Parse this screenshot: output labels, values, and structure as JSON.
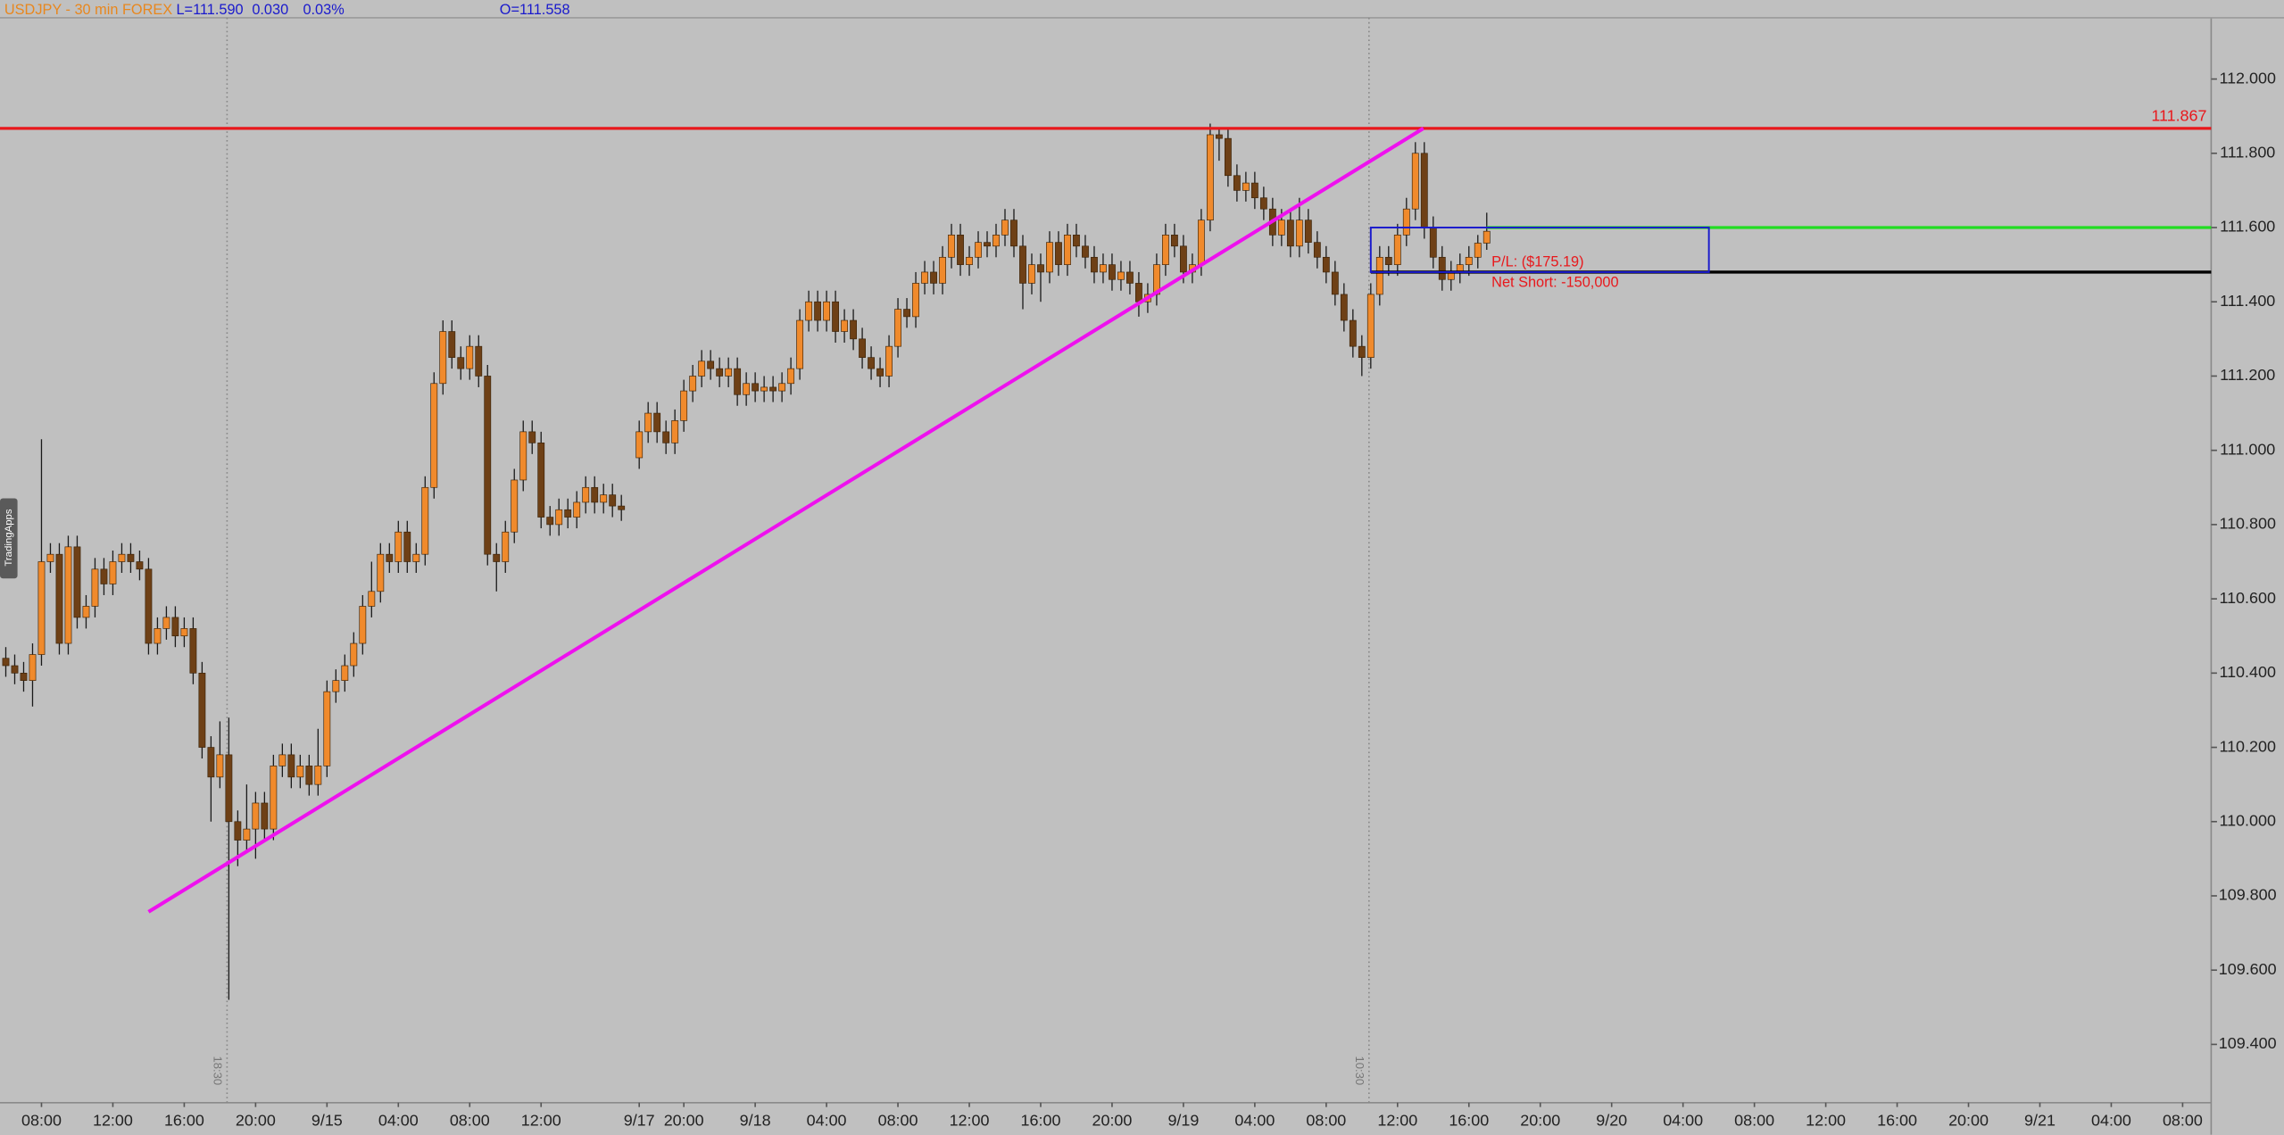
{
  "chart_data": {
    "type": "candlestick",
    "title": "USDJPY - 30 min  FOREX",
    "quote": [
      "L=111.590",
      "0.030",
      "0.03%",
      "O=111.558"
    ],
    "up_color": "#f08a2c",
    "down_color": "#6e4016",
    "wick_color": "#1a1a1a",
    "xlim": [
      -0.65,
      247.2
    ],
    "ylim": [
      109.243,
      112.165
    ],
    "yticks": [
      {
        "value": 109.4,
        "label": "109.400"
      },
      {
        "value": 109.6,
        "label": "109.600"
      },
      {
        "value": 109.8,
        "label": "109.800"
      },
      {
        "value": 110.0,
        "label": "110.000"
      },
      {
        "value": 110.2,
        "label": "110.200"
      },
      {
        "value": 110.4,
        "label": "110.400"
      },
      {
        "value": 110.6,
        "label": "110.600"
      },
      {
        "value": 110.8,
        "label": "110.800"
      },
      {
        "value": 111.0,
        "label": "111.000"
      },
      {
        "value": 111.2,
        "label": "111.200"
      },
      {
        "value": 111.4,
        "label": "111.400"
      },
      {
        "value": 111.6,
        "label": "111.600"
      },
      {
        "value": 111.8,
        "label": "111.800"
      },
      {
        "value": 112.0,
        "label": "112.000"
      }
    ],
    "xticks": [
      {
        "value": 4,
        "label": "08:00"
      },
      {
        "value": 12,
        "label": "12:00"
      },
      {
        "value": 20,
        "label": "16:00"
      },
      {
        "value": 28,
        "label": "20:00"
      },
      {
        "value": 36,
        "label": "9/15"
      },
      {
        "value": 44,
        "label": "04:00"
      },
      {
        "value": 52,
        "label": "08:00"
      },
      {
        "value": 60,
        "label": "12:00"
      },
      {
        "value": 71,
        "label": "9/17"
      },
      {
        "value": 76,
        "label": "20:00"
      },
      {
        "value": 84,
        "label": "9/18"
      },
      {
        "value": 92,
        "label": "04:00"
      },
      {
        "value": 100,
        "label": "08:00"
      },
      {
        "value": 108,
        "label": "12:00"
      },
      {
        "value": 116,
        "label": "16:00"
      },
      {
        "value": 124,
        "label": "20:00"
      },
      {
        "value": 132,
        "label": "9/19"
      },
      {
        "value": 140,
        "label": "04:00"
      },
      {
        "value": 148,
        "label": "08:00"
      },
      {
        "value": 156,
        "label": "12:00"
      },
      {
        "value": 164,
        "label": "16:00"
      },
      {
        "value": 172,
        "label": "20:00"
      },
      {
        "value": 180,
        "label": "9/20"
      },
      {
        "value": 188,
        "label": "04:00"
      },
      {
        "value": 196,
        "label": "08:00"
      },
      {
        "value": 204,
        "label": "12:00"
      },
      {
        "value": 212,
        "label": "16:00"
      },
      {
        "value": 220,
        "label": "20:00"
      },
      {
        "value": 228,
        "label": "9/21"
      },
      {
        "value": 236,
        "label": "04:00"
      },
      {
        "value": 244,
        "label": "08:00"
      }
    ],
    "ohlc": [
      [
        110.44,
        110.47,
        110.39,
        110.42
      ],
      [
        110.42,
        110.45,
        110.37,
        110.4
      ],
      [
        110.4,
        110.43,
        110.35,
        110.38
      ],
      [
        110.38,
        110.48,
        110.31,
        110.45
      ],
      [
        110.45,
        111.03,
        110.42,
        110.7
      ],
      [
        110.7,
        110.75,
        110.67,
        110.72
      ],
      [
        110.72,
        110.75,
        110.45,
        110.48
      ],
      [
        110.48,
        110.77,
        110.45,
        110.74
      ],
      [
        110.74,
        110.77,
        110.52,
        110.55
      ],
      [
        110.55,
        110.61,
        110.52,
        110.58
      ],
      [
        110.58,
        110.71,
        110.55,
        110.68
      ],
      [
        110.68,
        110.71,
        110.61,
        110.64
      ],
      [
        110.64,
        110.73,
        110.61,
        110.7
      ],
      [
        110.7,
        110.75,
        110.67,
        110.72
      ],
      [
        110.72,
        110.75,
        110.67,
        110.7
      ],
      [
        110.7,
        110.73,
        110.65,
        110.68
      ],
      [
        110.68,
        110.71,
        110.45,
        110.48
      ],
      [
        110.48,
        110.55,
        110.45,
        110.52
      ],
      [
        110.52,
        110.58,
        110.49,
        110.55
      ],
      [
        110.55,
        110.58,
        110.47,
        110.5
      ],
      [
        110.5,
        110.55,
        110.47,
        110.52
      ],
      [
        110.52,
        110.55,
        110.37,
        110.4
      ],
      [
        110.4,
        110.43,
        110.17,
        110.2
      ],
      [
        110.2,
        110.23,
        110.0,
        110.12
      ],
      [
        110.12,
        110.27,
        110.09,
        110.18
      ],
      [
        110.18,
        110.28,
        109.52,
        110.0
      ],
      [
        110.0,
        110.03,
        109.88,
        109.95
      ],
      [
        109.95,
        110.1,
        109.92,
        109.98
      ],
      [
        109.98,
        110.08,
        109.9,
        110.05
      ],
      [
        110.05,
        110.08,
        109.95,
        109.98
      ],
      [
        109.98,
        110.18,
        109.95,
        110.15
      ],
      [
        110.15,
        110.21,
        110.12,
        110.18
      ],
      [
        110.18,
        110.21,
        110.09,
        110.12
      ],
      [
        110.12,
        110.18,
        110.09,
        110.15
      ],
      [
        110.15,
        110.18,
        110.07,
        110.1
      ],
      [
        110.1,
        110.25,
        110.07,
        110.15
      ],
      [
        110.15,
        110.38,
        110.12,
        110.35
      ],
      [
        110.35,
        110.41,
        110.32,
        110.38
      ],
      [
        110.38,
        110.45,
        110.35,
        110.42
      ],
      [
        110.42,
        110.51,
        110.39,
        110.48
      ],
      [
        110.48,
        110.61,
        110.45,
        110.58
      ],
      [
        110.58,
        110.7,
        110.55,
        110.62
      ],
      [
        110.62,
        110.75,
        110.59,
        110.72
      ],
      [
        110.72,
        110.75,
        110.67,
        110.7
      ],
      [
        110.7,
        110.81,
        110.67,
        110.78
      ],
      [
        110.78,
        110.81,
        110.67,
        110.7
      ],
      [
        110.7,
        110.75,
        110.67,
        110.72
      ],
      [
        110.72,
        110.93,
        110.69,
        110.9
      ],
      [
        110.9,
        111.21,
        110.87,
        111.18
      ],
      [
        111.18,
        111.35,
        111.15,
        111.32
      ],
      [
        111.32,
        111.35,
        111.22,
        111.25
      ],
      [
        111.25,
        111.28,
        111.19,
        111.22
      ],
      [
        111.22,
        111.31,
        111.19,
        111.28
      ],
      [
        111.28,
        111.31,
        111.17,
        111.2
      ],
      [
        111.2,
        111.23,
        110.69,
        110.72
      ],
      [
        110.72,
        110.75,
        110.62,
        110.7
      ],
      [
        110.7,
        110.81,
        110.67,
        110.78
      ],
      [
        110.78,
        110.95,
        110.75,
        110.92
      ],
      [
        110.92,
        111.08,
        110.89,
        111.05
      ],
      [
        111.05,
        111.08,
        110.99,
        111.02
      ],
      [
        111.02,
        111.05,
        110.79,
        110.82
      ],
      [
        110.82,
        110.85,
        110.77,
        110.8
      ],
      [
        110.8,
        110.87,
        110.77,
        110.84
      ],
      [
        110.84,
        110.87,
        110.79,
        110.82
      ],
      [
        110.82,
        110.89,
        110.79,
        110.86
      ],
      [
        110.86,
        110.93,
        110.83,
        110.9
      ],
      [
        110.9,
        110.93,
        110.83,
        110.86
      ],
      [
        110.86,
        110.91,
        110.83,
        110.88
      ],
      [
        110.88,
        110.91,
        110.82,
        110.85
      ],
      [
        110.85,
        110.88,
        110.81,
        110.84
      ],
      null,
      [
        110.98,
        111.08,
        110.95,
        111.05
      ],
      [
        111.05,
        111.13,
        111.02,
        111.1
      ],
      [
        111.1,
        111.13,
        111.02,
        111.05
      ],
      [
        111.05,
        111.08,
        110.99,
        111.02
      ],
      [
        111.02,
        111.11,
        110.99,
        111.08
      ],
      [
        111.08,
        111.19,
        111.05,
        111.16
      ],
      [
        111.16,
        111.23,
        111.13,
        111.2
      ],
      [
        111.2,
        111.27,
        111.17,
        111.24
      ],
      [
        111.24,
        111.27,
        111.19,
        111.22
      ],
      [
        111.22,
        111.25,
        111.17,
        111.2
      ],
      [
        111.2,
        111.25,
        111.17,
        111.22
      ],
      [
        111.22,
        111.25,
        111.12,
        111.15
      ],
      [
        111.15,
        111.21,
        111.12,
        111.18
      ],
      [
        111.18,
        111.21,
        111.13,
        111.16
      ],
      [
        111.16,
        111.2,
        111.13,
        111.17
      ],
      [
        111.17,
        111.2,
        111.13,
        111.16
      ],
      [
        111.16,
        111.21,
        111.13,
        111.18
      ],
      [
        111.18,
        111.25,
        111.15,
        111.22
      ],
      [
        111.22,
        111.38,
        111.19,
        111.35
      ],
      [
        111.35,
        111.43,
        111.32,
        111.4
      ],
      [
        111.4,
        111.43,
        111.32,
        111.35
      ],
      [
        111.35,
        111.43,
        111.32,
        111.4
      ],
      [
        111.4,
        111.43,
        111.29,
        111.32
      ],
      [
        111.32,
        111.38,
        111.29,
        111.35
      ],
      [
        111.35,
        111.38,
        111.27,
        111.3
      ],
      [
        111.3,
        111.33,
        111.22,
        111.25
      ],
      [
        111.25,
        111.28,
        111.19,
        111.22
      ],
      [
        111.22,
        111.25,
        111.17,
        111.2
      ],
      [
        111.2,
        111.31,
        111.17,
        111.28
      ],
      [
        111.28,
        111.41,
        111.25,
        111.38
      ],
      [
        111.38,
        111.41,
        111.33,
        111.36
      ],
      [
        111.36,
        111.48,
        111.33,
        111.45
      ],
      [
        111.45,
        111.51,
        111.42,
        111.48
      ],
      [
        111.48,
        111.51,
        111.42,
        111.45
      ],
      [
        111.45,
        111.55,
        111.42,
        111.52
      ],
      [
        111.52,
        111.61,
        111.49,
        111.58
      ],
      [
        111.58,
        111.61,
        111.47,
        111.5
      ],
      [
        111.5,
        111.55,
        111.47,
        111.52
      ],
      [
        111.52,
        111.59,
        111.49,
        111.56
      ],
      [
        111.56,
        111.59,
        111.52,
        111.55
      ],
      [
        111.55,
        111.61,
        111.52,
        111.58
      ],
      [
        111.58,
        111.65,
        111.55,
        111.62
      ],
      [
        111.62,
        111.65,
        111.52,
        111.55
      ],
      [
        111.55,
        111.58,
        111.38,
        111.45
      ],
      [
        111.45,
        111.53,
        111.42,
        111.5
      ],
      [
        111.5,
        111.53,
        111.4,
        111.48
      ],
      [
        111.48,
        111.59,
        111.45,
        111.56
      ],
      [
        111.56,
        111.59,
        111.47,
        111.5
      ],
      [
        111.5,
        111.61,
        111.47,
        111.58
      ],
      [
        111.58,
        111.61,
        111.52,
        111.55
      ],
      [
        111.55,
        111.58,
        111.49,
        111.52
      ],
      [
        111.52,
        111.55,
        111.45,
        111.48
      ],
      [
        111.48,
        111.53,
        111.45,
        111.5
      ],
      [
        111.5,
        111.53,
        111.43,
        111.46
      ],
      [
        111.46,
        111.51,
        111.43,
        111.48
      ],
      [
        111.48,
        111.51,
        111.42,
        111.45
      ],
      [
        111.45,
        111.48,
        111.36,
        111.4
      ],
      [
        111.4,
        111.45,
        111.37,
        111.42
      ],
      [
        111.42,
        111.53,
        111.39,
        111.5
      ],
      [
        111.5,
        111.61,
        111.47,
        111.58
      ],
      [
        111.58,
        111.61,
        111.52,
        111.55
      ],
      [
        111.55,
        111.58,
        111.45,
        111.48
      ],
      [
        111.48,
        111.53,
        111.45,
        111.5
      ],
      [
        111.5,
        111.65,
        111.47,
        111.62
      ],
      [
        111.62,
        111.88,
        111.59,
        111.85
      ],
      [
        111.85,
        111.87,
        111.78,
        111.84
      ],
      [
        111.84,
        111.87,
        111.71,
        111.74
      ],
      [
        111.74,
        111.77,
        111.67,
        111.7
      ],
      [
        111.7,
        111.75,
        111.67,
        111.72
      ],
      [
        111.72,
        111.75,
        111.65,
        111.68
      ],
      [
        111.68,
        111.71,
        111.62,
        111.65
      ],
      [
        111.65,
        111.68,
        111.55,
        111.58
      ],
      [
        111.58,
        111.65,
        111.55,
        111.62
      ],
      [
        111.62,
        111.65,
        111.52,
        111.55
      ],
      [
        111.55,
        111.68,
        111.52,
        111.62
      ],
      [
        111.62,
        111.65,
        111.53,
        111.56
      ],
      [
        111.56,
        111.59,
        111.49,
        111.52
      ],
      [
        111.52,
        111.55,
        111.45,
        111.48
      ],
      [
        111.48,
        111.51,
        111.39,
        111.42
      ],
      [
        111.42,
        111.45,
        111.32,
        111.35
      ],
      [
        111.35,
        111.38,
        111.25,
        111.28
      ],
      [
        111.28,
        111.31,
        111.2,
        111.25
      ],
      [
        111.25,
        111.45,
        111.22,
        111.42
      ],
      [
        111.42,
        111.55,
        111.39,
        111.52
      ],
      [
        111.52,
        111.55,
        111.47,
        111.5
      ],
      [
        111.5,
        111.61,
        111.47,
        111.58
      ],
      [
        111.58,
        111.68,
        111.55,
        111.65
      ],
      [
        111.65,
        111.83,
        111.62,
        111.8
      ],
      [
        111.8,
        111.83,
        111.57,
        111.6
      ],
      [
        111.6,
        111.63,
        111.49,
        111.52
      ],
      [
        111.52,
        111.55,
        111.43,
        111.46
      ],
      [
        111.46,
        111.51,
        111.43,
        111.48
      ],
      [
        111.48,
        111.53,
        111.45,
        111.5
      ],
      [
        111.5,
        111.55,
        111.47,
        111.52
      ],
      [
        111.52,
        111.58,
        111.49,
        111.558
      ],
      [
        111.558,
        111.64,
        111.54,
        111.59
      ]
    ],
    "hlines": [
      {
        "value": 111.867,
        "label": "111.867",
        "color": "#e8181c"
      },
      {
        "value": 111.6,
        "color": "#22dd22",
        "x0": 166
      },
      {
        "value": 111.48,
        "color": "#000000",
        "x0": 153
      }
    ],
    "trendline": {
      "x": [
        16,
        158.9
      ],
      "y": [
        109.757,
        111.867
      ],
      "color": "#ee11ee"
    },
    "box": {
      "x": [
        153,
        190.9
      ],
      "y": [
        111.48,
        111.6
      ],
      "color": "#1a1acc"
    },
    "vlines": [
      {
        "x": 24.8,
        "label": "18:30"
      },
      {
        "x": 152.8,
        "label": "10:30"
      }
    ],
    "annotations": [
      "P/L: ($175.19)",
      "Net Short: -150,000"
    ],
    "side_tab": "TradingApps"
  }
}
